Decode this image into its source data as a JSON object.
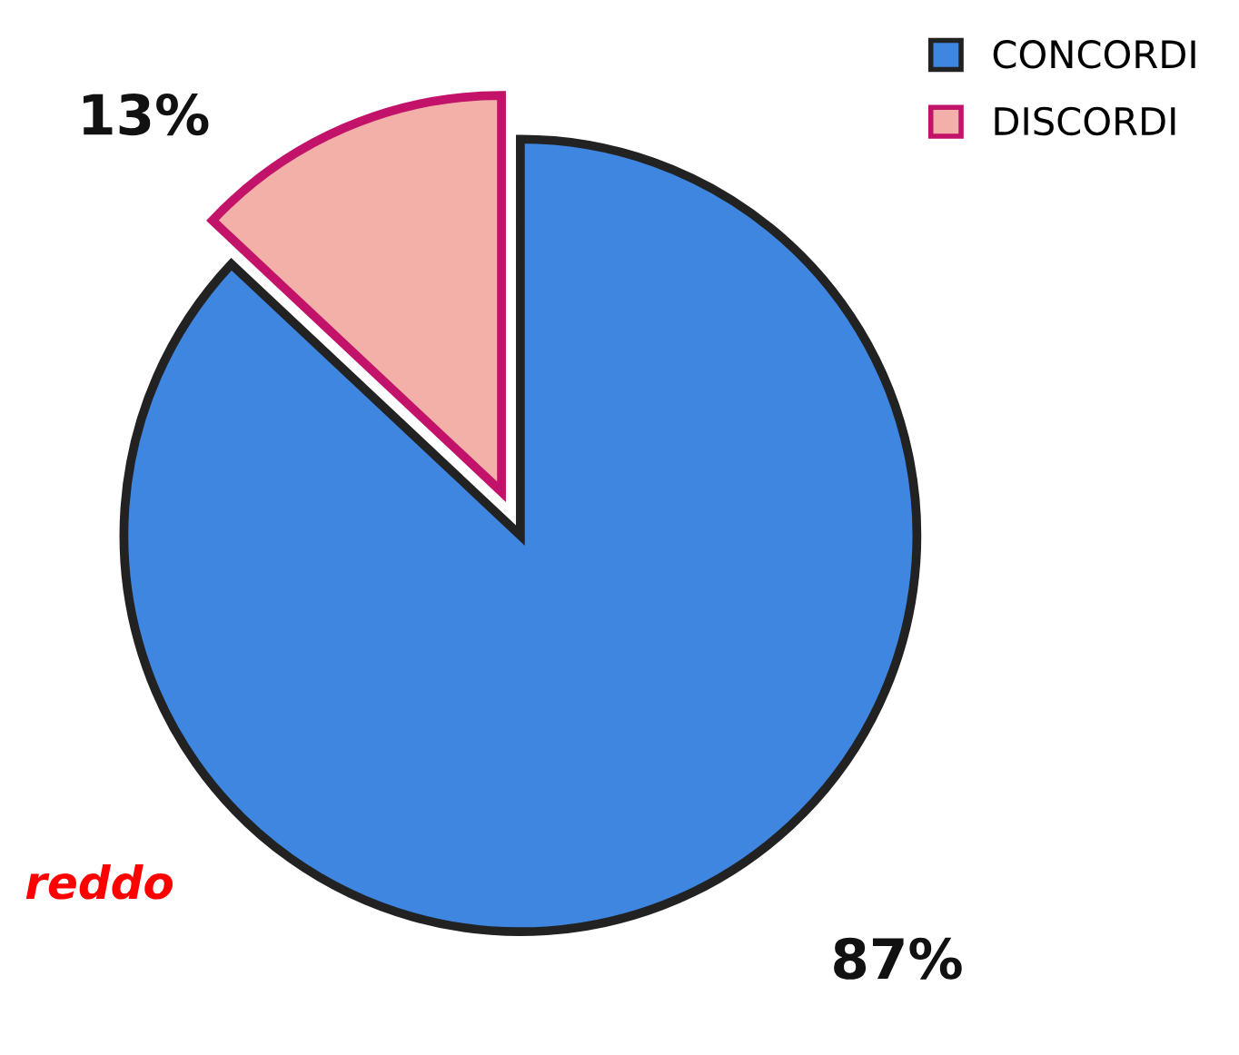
{
  "chart_data": {
    "type": "pie",
    "categories": [
      "CONCORDI",
      "DISCORDI"
    ],
    "values": [
      87,
      13
    ],
    "colors": [
      "#3f86e0",
      "#f2b0a8"
    ],
    "value_labels": [
      "87%",
      "13%"
    ],
    "legend": "top right",
    "annotations": [
      "reddo"
    ]
  }
}
